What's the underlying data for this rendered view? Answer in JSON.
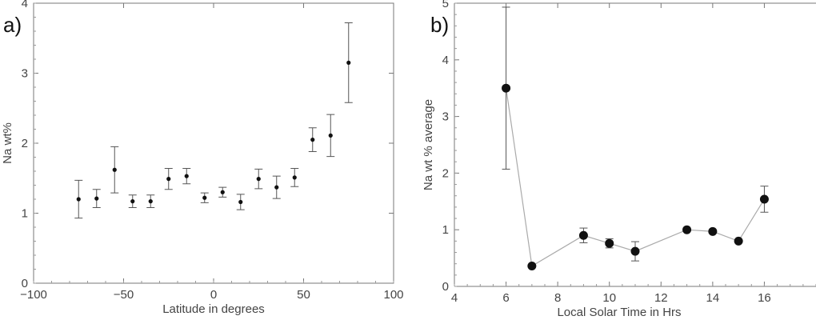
{
  "panels": [
    {
      "label": "a)"
    },
    {
      "label": "b)"
    }
  ],
  "chart_data": [
    {
      "type": "scatter",
      "xlabel": "Latitude in degrees",
      "ylabel": "Na wt%",
      "xlim": [
        -100,
        100
      ],
      "ylim": [
        0,
        4
      ],
      "xticks": [
        "−100",
        "−50",
        "0",
        "50",
        "100"
      ],
      "xtick_values": [
        -100,
        -50,
        0,
        50,
        100
      ],
      "yticks": [
        "0",
        "1",
        "2",
        "3",
        "4"
      ],
      "ytick_values": [
        0,
        1,
        2,
        3,
        4
      ],
      "series": [
        {
          "points": [
            {
              "x": -75,
              "y": 1.2,
              "err": 0.27
            },
            {
              "x": -65,
              "y": 1.21,
              "err": 0.13
            },
            {
              "x": -55,
              "y": 1.62,
              "err": 0.33
            },
            {
              "x": -45,
              "y": 1.17,
              "err": 0.09
            },
            {
              "x": -35,
              "y": 1.17,
              "err": 0.09
            },
            {
              "x": -25,
              "y": 1.49,
              "err": 0.15
            },
            {
              "x": -15,
              "y": 1.53,
              "err": 0.11
            },
            {
              "x": -5,
              "y": 1.22,
              "err": 0.07
            },
            {
              "x": 5,
              "y": 1.3,
              "err": 0.07
            },
            {
              "x": 15,
              "y": 1.16,
              "err": 0.11
            },
            {
              "x": 25,
              "y": 1.49,
              "err": 0.14
            },
            {
              "x": 35,
              "y": 1.37,
              "err": 0.16
            },
            {
              "x": 45,
              "y": 1.51,
              "err": 0.13
            },
            {
              "x": 55,
              "y": 2.05,
              "err": 0.17
            },
            {
              "x": 65,
              "y": 2.11,
              "err": 0.3
            },
            {
              "x": 75,
              "y": 3.15,
              "err": 0.57
            }
          ]
        }
      ],
      "grid": false
    },
    {
      "type": "line",
      "xlabel": "Local Solar Time in Hrs",
      "ylabel": "Na wt % average",
      "xlim": [
        4,
        18
      ],
      "ylim": [
        0,
        5
      ],
      "xticks": [
        "4",
        "6",
        "8",
        "10",
        "12",
        "14",
        "16"
      ],
      "xtick_values": [
        4,
        6,
        8,
        10,
        12,
        14,
        16
      ],
      "yticks": [
        "0",
        "1",
        "2",
        "3",
        "4",
        "5"
      ],
      "ytick_values": [
        0,
        1,
        2,
        3,
        4,
        5
      ],
      "series": [
        {
          "color": "#aaaaaa",
          "points": [
            {
              "x": 6,
              "y": 3.5,
              "err": 1.43
            },
            {
              "x": 7,
              "y": 0.36,
              "err": 0
            },
            {
              "x": 9,
              "y": 0.9,
              "err": 0.13
            },
            {
              "x": 10,
              "y": 0.76,
              "err": 0.08
            },
            {
              "x": 11,
              "y": 0.62,
              "err": 0.17
            },
            {
              "x": 13,
              "y": 1.0,
              "err": 0
            },
            {
              "x": 14,
              "y": 0.97,
              "err": 0
            },
            {
              "x": 15,
              "y": 0.8,
              "err": 0
            },
            {
              "x": 16,
              "y": 1.54,
              "err": 0.23
            }
          ]
        }
      ],
      "grid": false
    }
  ]
}
